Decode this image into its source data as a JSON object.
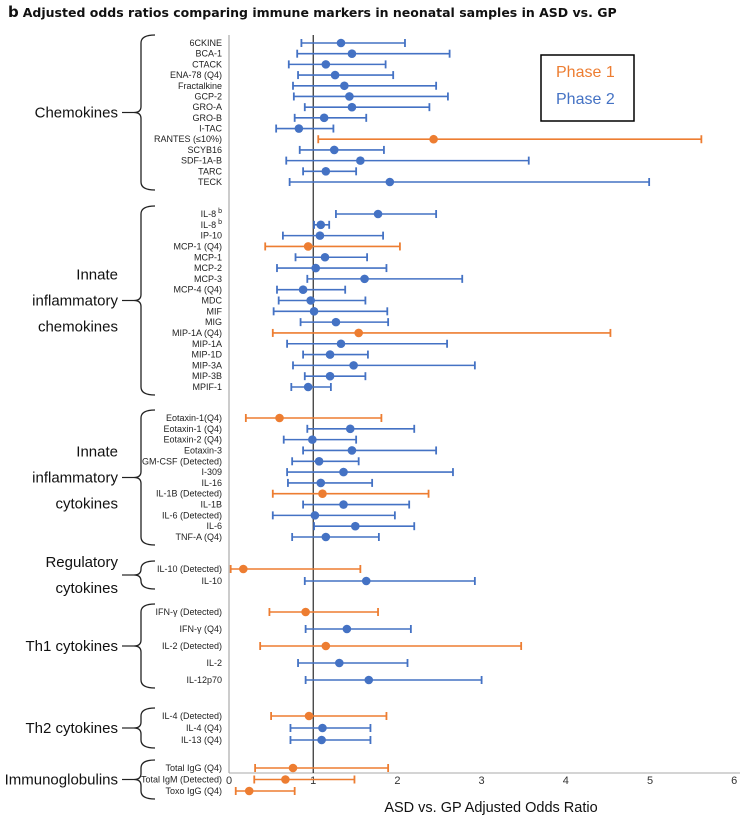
{
  "chart_data": {
    "type": "forest",
    "title_prefix": "b",
    "title": "Adjusted odds ratios comparing immune markers in neonatal samples in ASD vs. GP",
    "xlabel": "ASD vs. GP Adjusted Odds Ratio",
    "xlim": [
      0,
      6
    ],
    "xticks": [
      "0",
      "1",
      "2",
      "3",
      "4",
      "5",
      "6"
    ],
    "reference_line": 1,
    "grid": false,
    "legend_position": "top-right",
    "colors": {
      "Phase 1": "#ED7D31",
      "Phase 2": "#4472C4"
    },
    "legend": [
      {
        "name": "Phase 1",
        "color": "#ED7D31"
      },
      {
        "name": "Phase 2",
        "color": "#4472C4"
      }
    ],
    "groups": [
      {
        "label": [
          "Chemokines"
        ],
        "rows": [
          {
            "label": "6CKINE",
            "phase": 2,
            "lo": 0.86,
            "or": 1.33,
            "hi": 2.09
          },
          {
            "label": "BCA-1",
            "phase": 2,
            "lo": 0.81,
            "or": 1.46,
            "hi": 2.62
          },
          {
            "label": "CTACK",
            "phase": 2,
            "lo": 0.71,
            "or": 1.15,
            "hi": 1.86
          },
          {
            "label": "ENA-78 (Q4)",
            "phase": 2,
            "lo": 0.82,
            "or": 1.26,
            "hi": 1.95
          },
          {
            "label": "Fractalkine",
            "phase": 2,
            "lo": 0.76,
            "or": 1.37,
            "hi": 2.46
          },
          {
            "label": "GCP-2",
            "phase": 2,
            "lo": 0.77,
            "or": 1.43,
            "hi": 2.6
          },
          {
            "label": "GRO-A",
            "phase": 2,
            "lo": 0.9,
            "or": 1.46,
            "hi": 2.38
          },
          {
            "label": "GRO-B",
            "phase": 2,
            "lo": 0.78,
            "or": 1.13,
            "hi": 1.63
          },
          {
            "label": "I-TAC",
            "phase": 2,
            "lo": 0.56,
            "or": 0.83,
            "hi": 1.24
          },
          {
            "label": "RANTES (≤10%)",
            "phase": 1,
            "lo": 1.06,
            "or": 2.43,
            "hi": 5.61
          },
          {
            "label": "SCYB16",
            "phase": 2,
            "lo": 0.84,
            "or": 1.25,
            "hi": 1.84
          },
          {
            "label": "SDF-1A-B",
            "phase": 2,
            "lo": 0.68,
            "or": 1.56,
            "hi": 3.56
          },
          {
            "label": "TARC",
            "phase": 2,
            "lo": 0.88,
            "or": 1.15,
            "hi": 1.51
          },
          {
            "label": "TECK",
            "phase": 2,
            "lo": 0.72,
            "or": 1.91,
            "hi": 4.99
          }
        ]
      },
      {
        "label": [
          "Innate",
          "inflammatory",
          "chemokines"
        ],
        "rows": [
          {
            "label": "IL-8",
            "sup": "b",
            "phase": 2,
            "lo": 1.27,
            "or": 1.77,
            "hi": 2.46
          },
          {
            "label": "IL-8",
            "sup": "b",
            "phase": 2,
            "lo": 1.01,
            "or": 1.09,
            "hi": 1.19
          },
          {
            "label": "IP-10",
            "phase": 2,
            "lo": 0.64,
            "or": 1.08,
            "hi": 1.83
          },
          {
            "label": "MCP-1 (Q4)",
            "phase": 1,
            "lo": 0.43,
            "or": 0.94,
            "hi": 2.03
          },
          {
            "label": "MCP-1",
            "phase": 2,
            "lo": 0.79,
            "or": 1.14,
            "hi": 1.64
          },
          {
            "label": "MCP-2",
            "phase": 2,
            "lo": 0.57,
            "or": 1.03,
            "hi": 1.87
          },
          {
            "label": "MCP-3",
            "phase": 2,
            "lo": 0.93,
            "or": 1.61,
            "hi": 2.77
          },
          {
            "label": "MCP-4 (Q4)",
            "phase": 2,
            "lo": 0.57,
            "or": 0.88,
            "hi": 1.38
          },
          {
            "label": "MDC",
            "phase": 2,
            "lo": 0.59,
            "or": 0.97,
            "hi": 1.62
          },
          {
            "label": "MIF",
            "phase": 2,
            "lo": 0.53,
            "or": 1.01,
            "hi": 1.88
          },
          {
            "label": "MIG",
            "phase": 2,
            "lo": 0.85,
            "or": 1.27,
            "hi": 1.89
          },
          {
            "label": "MIP-1A (Q4)",
            "phase": 1,
            "lo": 0.52,
            "or": 1.54,
            "hi": 4.53
          },
          {
            "label": "MIP-1A",
            "phase": 2,
            "lo": 0.69,
            "or": 1.33,
            "hi": 2.59
          },
          {
            "label": "MIP-1D",
            "phase": 2,
            "lo": 0.88,
            "or": 1.2,
            "hi": 1.65
          },
          {
            "label": "MIP-3A",
            "phase": 2,
            "lo": 0.76,
            "or": 1.48,
            "hi": 2.92
          },
          {
            "label": "MIP-3B",
            "phase": 2,
            "lo": 0.9,
            "or": 1.2,
            "hi": 1.62
          },
          {
            "label": "MPIF-1",
            "phase": 2,
            "lo": 0.74,
            "or": 0.94,
            "hi": 1.21
          }
        ]
      },
      {
        "label": [
          "Innate",
          "inflammatory",
          "cytokines"
        ],
        "rows": [
          {
            "label": "Eotaxin-1(Q4)",
            "phase": 1,
            "lo": 0.2,
            "or": 0.6,
            "hi": 1.81
          },
          {
            "label": "Eotaxin-1 (Q4)",
            "phase": 2,
            "lo": 0.93,
            "or": 1.44,
            "hi": 2.2
          },
          {
            "label": "Eotaxin-2 (Q4)",
            "phase": 2,
            "lo": 0.65,
            "or": 0.99,
            "hi": 1.51
          },
          {
            "label": "Eotaxin-3",
            "phase": 2,
            "lo": 0.88,
            "or": 1.46,
            "hi": 2.46
          },
          {
            "label": "GM-CSF (Detected)",
            "phase": 2,
            "lo": 0.75,
            "or": 1.07,
            "hi": 1.54
          },
          {
            "label": "I-309",
            "phase": 2,
            "lo": 0.69,
            "or": 1.36,
            "hi": 2.66
          },
          {
            "label": "IL-16",
            "phase": 2,
            "lo": 0.7,
            "or": 1.09,
            "hi": 1.7
          },
          {
            "label": "IL-1B (Detected)",
            "phase": 1,
            "lo": 0.52,
            "or": 1.11,
            "hi": 2.37
          },
          {
            "label": "IL-1B",
            "phase": 2,
            "lo": 0.88,
            "or": 1.36,
            "hi": 2.14
          },
          {
            "label": "IL-6 (Detected)",
            "phase": 2,
            "lo": 0.52,
            "or": 1.02,
            "hi": 1.97
          },
          {
            "label": "IL-6",
            "phase": 2,
            "lo": 1.01,
            "or": 1.5,
            "hi": 2.2
          },
          {
            "label": "TNF-A (Q4)",
            "phase": 2,
            "lo": 0.75,
            "or": 1.15,
            "hi": 1.78
          }
        ]
      },
      {
        "label": [
          "Regulatory",
          "cytokines"
        ],
        "rows": [
          {
            "label": "IL-10 (Detected)",
            "phase": 1,
            "lo": 0.02,
            "or": 0.17,
            "hi": 1.56
          },
          {
            "label": "IL-10",
            "phase": 2,
            "lo": 0.9,
            "or": 1.63,
            "hi": 2.92
          }
        ]
      },
      {
        "label": [
          "Th1 cytokines"
        ],
        "rows": [
          {
            "label": "IFN-γ (Detected)",
            "phase": 1,
            "lo": 0.48,
            "or": 0.91,
            "hi": 1.77
          },
          {
            "label": "IFN-γ (Q4)",
            "phase": 2,
            "lo": 0.91,
            "or": 1.4,
            "hi": 2.16
          },
          {
            "label": "IL-2 (Detected)",
            "phase": 1,
            "lo": 0.37,
            "or": 1.15,
            "hi": 3.47
          },
          {
            "label": "IL-2",
            "phase": 2,
            "lo": 0.82,
            "or": 1.31,
            "hi": 2.12
          },
          {
            "label": "IL-12p70",
            "phase": 2,
            "lo": 0.91,
            "or": 1.66,
            "hi": 3.0
          }
        ]
      },
      {
        "label": [
          "Th2 cytokines"
        ],
        "rows": [
          {
            "label": "IL-4 (Detected)",
            "phase": 1,
            "lo": 0.5,
            "or": 0.95,
            "hi": 1.87
          },
          {
            "label": "IL-4 (Q4)",
            "phase": 2,
            "lo": 0.73,
            "or": 1.11,
            "hi": 1.68
          },
          {
            "label": "IL-13 (Q4)",
            "phase": 2,
            "lo": 0.73,
            "or": 1.1,
            "hi": 1.68
          }
        ]
      },
      {
        "label": [
          "Immunoglobulins"
        ],
        "rows": [
          {
            "label": "Total IgG (Q4)",
            "phase": 1,
            "lo": 0.31,
            "or": 0.76,
            "hi": 1.89
          },
          {
            "label": "Total IgM (Detected)",
            "phase": 1,
            "lo": 0.3,
            "or": 0.67,
            "hi": 1.49
          },
          {
            "label": "Toxo IgG (Q4)",
            "phase": 1,
            "lo": 0.08,
            "or": 0.24,
            "hi": 0.78
          }
        ]
      }
    ]
  }
}
